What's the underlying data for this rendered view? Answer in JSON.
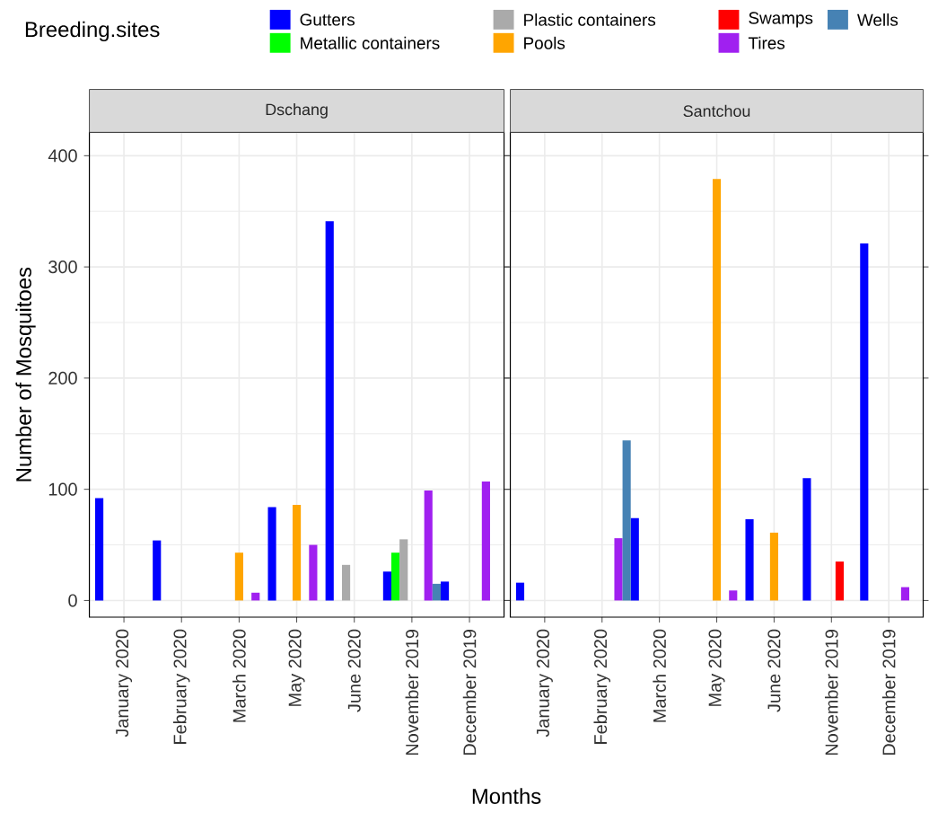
{
  "chart_data": [
    {
      "type": "bar",
      "title": "Dschang",
      "xlabel": "Months",
      "ylabel": "Number of Mosquitoes",
      "legend_title": "Breeding.sites",
      "legend": "top",
      "grid": true,
      "categories": [
        "January 2020",
        "February 2020",
        "March 2020",
        "May 2020",
        "June 2020",
        "November 2019",
        "December 2019"
      ],
      "ylim": [
        -15,
        421
      ],
      "yticks": [
        0,
        100,
        200,
        300,
        400
      ],
      "series": [
        {
          "name": "Gutters",
          "color": "#0000ff",
          "values": [
            92,
            54,
            null,
            84,
            341,
            26,
            17
          ]
        },
        {
          "name": "Metallic containers",
          "color": "#00ff00",
          "values": [
            null,
            null,
            null,
            null,
            null,
            43,
            null
          ]
        },
        {
          "name": "Plastic containers",
          "color": "#aaaaaa",
          "values": [
            null,
            null,
            null,
            null,
            32,
            55,
            null
          ]
        },
        {
          "name": "Pools",
          "color": "#ffa500",
          "values": [
            null,
            null,
            43,
            86,
            null,
            null,
            null
          ]
        },
        {
          "name": "Swamps",
          "color": "#ff0000",
          "values": [
            null,
            null,
            null,
            null,
            null,
            null,
            null
          ]
        },
        {
          "name": "Tires",
          "color": "#a020f0",
          "values": [
            null,
            null,
            7,
            50,
            null,
            99,
            107
          ]
        },
        {
          "name": "Wells",
          "color": "#4682b4",
          "values": [
            null,
            null,
            null,
            null,
            null,
            15,
            null
          ]
        }
      ]
    },
    {
      "type": "bar",
      "title": "Santchou",
      "grid": true,
      "tick_labels": "x",
      "categories": [
        "January 2020",
        "February 2020",
        "March 2020",
        "May 2020",
        "June 2020",
        "November 2019",
        "December 2019"
      ],
      "ylim": [
        -15,
        421
      ],
      "yticks": [
        0,
        100,
        200,
        300,
        400
      ],
      "series": [
        {
          "color": "#0000ff",
          "values": [
            16,
            null,
            74,
            null,
            73,
            110,
            321
          ]
        },
        {
          "values": [
            null,
            null,
            null,
            null,
            null,
            null,
            null
          ]
        },
        {
          "values": [
            null,
            null,
            null,
            null,
            null,
            null,
            null
          ]
        },
        {
          "color": "#ffa500",
          "values": [
            null,
            null,
            null,
            379,
            61,
            null,
            null
          ]
        },
        {
          "color": "#ff0000",
          "values": [
            null,
            null,
            null,
            null,
            null,
            35,
            null
          ]
        },
        {
          "color": "#a020f0",
          "values": [
            null,
            56,
            null,
            9,
            null,
            null,
            12
          ]
        },
        {
          "color": "#4682b4",
          "values": [
            null,
            144,
            null,
            null,
            null,
            null,
            null
          ]
        }
      ]
    }
  ]
}
